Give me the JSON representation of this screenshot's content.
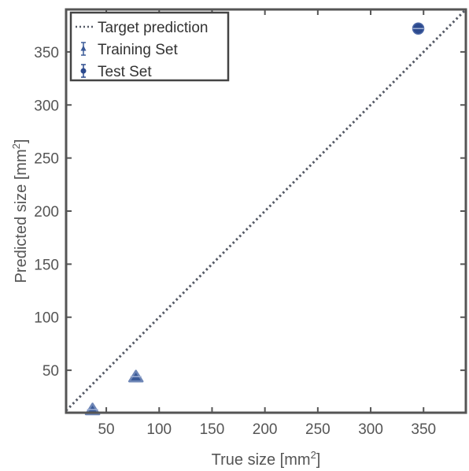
{
  "chart_data": {
    "type": "scatter",
    "xlabel": "True size [mm",
    "xlabel_sup": "2",
    "xlabel_end": "]",
    "ylabel": "Predicted size [mm",
    "ylabel_sup": "2",
    "ylabel_end": "]",
    "xlim": [
      12,
      390
    ],
    "ylim": [
      10,
      390
    ],
    "xticks": [
      50,
      100,
      150,
      200,
      250,
      300,
      350
    ],
    "yticks": [
      50,
      100,
      150,
      200,
      250,
      300,
      350
    ],
    "grid": false,
    "legend_position": "top-left",
    "series": [
      {
        "name": "Target prediction",
        "kind": "reference-line",
        "style": "dotted",
        "color": "#555a66",
        "x": [
          12,
          390
        ],
        "y": [
          12,
          390
        ]
      },
      {
        "name": "Training Set",
        "kind": "points",
        "marker": "triangle",
        "color": "#3a5a98",
        "x": [
          37,
          78
        ],
        "y": [
          13,
          44
        ]
      },
      {
        "name": "Test Set",
        "kind": "points",
        "marker": "circle",
        "color": "#2c4a8e",
        "x": [
          345
        ],
        "y": [
          372
        ]
      }
    ]
  }
}
